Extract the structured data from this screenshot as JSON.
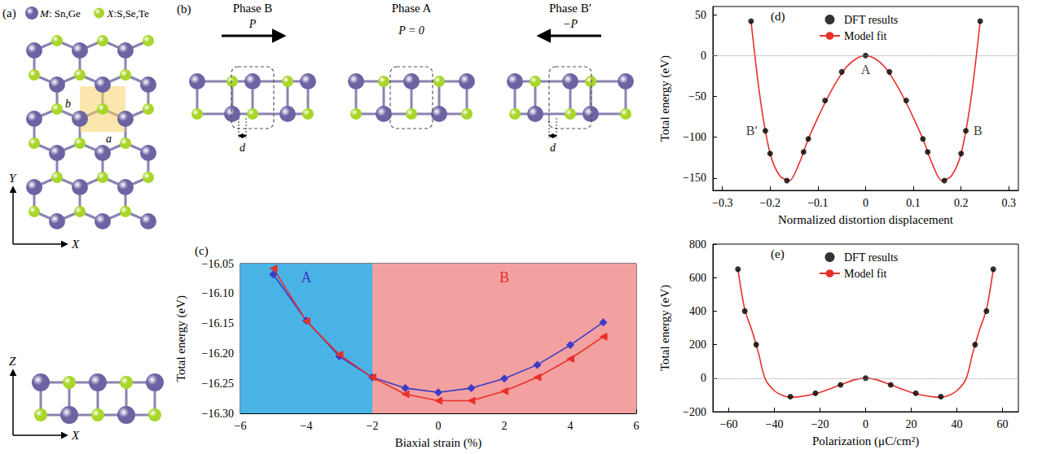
{
  "panel_a": {
    "panel_label": "(a)",
    "legend": [
      {
        "text": "M: Sn,Ge",
        "color": "#6c63a3"
      },
      {
        "text": "X:S,Se,Te",
        "color": "#a8d62a"
      }
    ],
    "lattice_vectors": [
      "a",
      "b"
    ],
    "top_axes": [
      "X",
      "Y"
    ],
    "side_axes": [
      "X",
      "Z"
    ]
  },
  "panel_b": {
    "panel_label": "(b)",
    "phases": [
      {
        "title": "Phase B",
        "polarization": "P",
        "distortion": "d"
      },
      {
        "title": "Phase A",
        "polarization": "P = 0"
      },
      {
        "title": "Phase B′",
        "polarization": "−P",
        "distortion": "d"
      }
    ]
  },
  "chart_data": [
    {
      "panel_label": "(c)",
      "type": "line",
      "x_label": "Biaxial strain (%)",
      "y_label": "Total energy (eV)",
      "x": [
        -5,
        -4,
        -3,
        -2,
        -1,
        0,
        1,
        2,
        3,
        4,
        5
      ],
      "series": [
        {
          "color": "#3b3bc8",
          "marker": "diamond",
          "values": [
            -16.068,
            -16.145,
            -16.205,
            -16.24,
            -16.258,
            -16.265,
            -16.258,
            -16.242,
            -16.219,
            -16.186,
            -16.148
          ]
        },
        {
          "color": "#e8302a",
          "marker": "triangle-left",
          "values": [
            -16.058,
            -16.146,
            -16.202,
            -16.24,
            -16.268,
            -16.279,
            -16.279,
            -16.263,
            -16.24,
            -16.209,
            -16.172
          ]
        }
      ],
      "regions": [
        {
          "label": "A",
          "x": [
            -6,
            -2
          ],
          "color": "#4ab3e6"
        },
        {
          "label": "B",
          "x": [
            -2,
            6
          ],
          "color": "#f3a0a0"
        }
      ],
      "xlim": [
        -6,
        6
      ],
      "xticks": [
        {
          "value": -6,
          "label": "−6"
        },
        {
          "value": -4,
          "label": "−4"
        },
        {
          "value": -2,
          "label": "−2"
        },
        0,
        2,
        4,
        6
      ],
      "ylim": [
        -16.3,
        -16.05
      ],
      "yticks": [
        {
          "value": -16.3,
          "label": "−16.30"
        },
        {
          "value": -16.25,
          "label": "−16.25"
        },
        {
          "value": -16.2,
          "label": "−16.20"
        },
        {
          "value": -16.15,
          "label": "−16.15"
        },
        {
          "value": -16.1,
          "label": "−16.10"
        },
        {
          "value": -16.05,
          "label": "−16.05"
        }
      ]
    },
    {
      "panel_label": "(d)",
      "type": "scatter",
      "x_label": "Normalized distortion displacement",
      "y_label": "Total energy (eV)",
      "legend": "upper center",
      "hline": 0,
      "series": [
        {
          "name": "DFT results",
          "type": "scatter",
          "color": "#000000",
          "marker": "circle",
          "x": [
            -0.24,
            -0.21,
            -0.2,
            -0.165,
            -0.13,
            -0.12,
            -0.085,
            -0.05,
            0,
            0.05,
            0.085,
            0.12,
            0.13,
            0.165,
            0.2,
            0.21,
            0.24
          ],
          "values": [
            42,
            -92,
            -120,
            -153,
            -118,
            -102,
            -55,
            -20,
            0,
            -20,
            -55,
            -102,
            -118,
            -153,
            -120,
            -92,
            42
          ],
          "point_labels": [
            null,
            "B′",
            null,
            null,
            null,
            null,
            null,
            null,
            "A",
            null,
            null,
            null,
            null,
            null,
            null,
            "B",
            null
          ]
        },
        {
          "name": "Model fit",
          "type": "line",
          "color": "#e8302a",
          "marker": "none",
          "line_style": "solid",
          "x": [
            -0.24,
            -0.22,
            -0.2,
            -0.18,
            -0.16,
            -0.14,
            -0.12,
            -0.1,
            -0.08,
            -0.06,
            -0.04,
            -0.02,
            0,
            0.02,
            0.04,
            0.06,
            0.08,
            0.1,
            0.12,
            0.14,
            0.16,
            0.18,
            0.2,
            0.22,
            0.24
          ],
          "values": [
            42,
            -56,
            -120,
            -147,
            -153,
            -133,
            -102,
            -76,
            -52,
            -31,
            -14,
            -4,
            0,
            -4,
            -14,
            -31,
            -52,
            -76,
            -102,
            -133,
            -153,
            -147,
            -120,
            -56,
            42
          ]
        }
      ],
      "xlim": [
        -0.32,
        0.32
      ],
      "xticks": [
        {
          "value": -0.3,
          "label": "−0.3"
        },
        {
          "value": -0.2,
          "label": "−0.2"
        },
        {
          "value": -0.1,
          "label": "−0.1"
        },
        0,
        0.1,
        0.2,
        0.3
      ],
      "ylim": [
        -165,
        60
      ],
      "yticks": [
        {
          "value": -150,
          "label": "−150"
        },
        {
          "value": -100,
          "label": "−100"
        },
        {
          "value": -50,
          "label": "−50"
        },
        0,
        50
      ]
    },
    {
      "panel_label": "(e)",
      "type": "scatter",
      "x_label": "Polarization (μC/cm²)",
      "y_label": "Total energy (eV)",
      "legend": "upper center",
      "hline": 0,
      "series": [
        {
          "name": "DFT results",
          "type": "scatter",
          "color": "#000000",
          "marker": "circle",
          "x": [
            -56,
            -53,
            -48,
            -33,
            -22,
            -11,
            0,
            11,
            22,
            33,
            48,
            53,
            56
          ],
          "values": [
            650,
            400,
            200,
            -110,
            -90,
            -40,
            0,
            -40,
            -90,
            -110,
            200,
            400,
            650
          ]
        },
        {
          "name": "Model fit",
          "type": "line",
          "color": "#e8302a",
          "marker": "none",
          "line_style": "solid",
          "x": [
            -56,
            -53,
            -50,
            -47,
            -44,
            -40,
            -36,
            -33,
            -30,
            -25,
            -20,
            -15,
            -10,
            -5,
            0,
            5,
            10,
            15,
            20,
            25,
            30,
            33,
            36,
            40,
            44,
            47,
            50,
            53,
            56
          ],
          "values": [
            650,
            410,
            290,
            150,
            -5,
            -75,
            -105,
            -113,
            -112,
            -102,
            -85,
            -60,
            -35,
            -10,
            0,
            -10,
            -35,
            -60,
            -85,
            -102,
            -112,
            -113,
            -105,
            -75,
            -5,
            150,
            290,
            410,
            650
          ]
        }
      ],
      "xlim": [
        -67,
        67
      ],
      "xticks": [
        {
          "value": -60,
          "label": "−60"
        },
        {
          "value": -40,
          "label": "−40"
        },
        {
          "value": -20,
          "label": "−20"
        },
        0,
        20,
        40,
        60
      ],
      "ylim": [
        -200,
        800
      ],
      "yticks": [
        {
          "value": -200,
          "label": "−200"
        },
        0,
        200,
        400,
        600,
        800
      ]
    }
  ]
}
